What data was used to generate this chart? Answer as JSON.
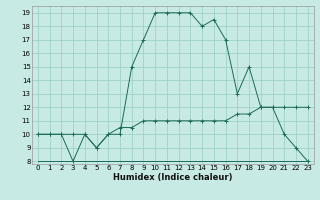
{
  "xlabel": "Humidex (Indice chaleur)",
  "xlim": [
    -0.5,
    23.5
  ],
  "ylim": [
    7.8,
    19.5
  ],
  "xticks": [
    0,
    1,
    2,
    3,
    4,
    5,
    6,
    7,
    8,
    9,
    10,
    11,
    12,
    13,
    14,
    15,
    16,
    17,
    18,
    19,
    20,
    21,
    22,
    23
  ],
  "yticks": [
    8,
    9,
    10,
    11,
    12,
    13,
    14,
    15,
    16,
    17,
    18,
    19
  ],
  "bg_color": "#c8eae4",
  "grid_color": "#a0d0cc",
  "line_color": "#1a6b5a",
  "line_main_x": [
    0,
    1,
    2,
    3,
    4,
    5,
    6,
    7,
    8,
    9,
    10,
    11,
    12,
    13,
    14,
    15,
    16,
    17,
    18,
    19,
    20,
    21,
    22,
    23
  ],
  "line_main_y": [
    10,
    10,
    10,
    8,
    10,
    9,
    10,
    10,
    15,
    17,
    19,
    19,
    19,
    19,
    18,
    18.5,
    17,
    13,
    15,
    12,
    12,
    10,
    9,
    8
  ],
  "line_flat_x": [
    0,
    1,
    2,
    3,
    4,
    5,
    6,
    7,
    8,
    9,
    10,
    11,
    12,
    13,
    14,
    15,
    16,
    17,
    18,
    19,
    20,
    21,
    22,
    23
  ],
  "line_flat_y": [
    8,
    8,
    8,
    8,
    8,
    8,
    8,
    8,
    8,
    8,
    8,
    8,
    8,
    8,
    8,
    8,
    8,
    8,
    8,
    8,
    8,
    8,
    8,
    8
  ],
  "line_avg_x": [
    0,
    1,
    2,
    3,
    4,
    5,
    6,
    7,
    8,
    9,
    10,
    11,
    12,
    13,
    14,
    15,
    16,
    17,
    18,
    19,
    20,
    21,
    22,
    23
  ],
  "line_avg_y": [
    10,
    10,
    10,
    10,
    10,
    9,
    10,
    10.5,
    10.5,
    11,
    11,
    11,
    11,
    11,
    11,
    11,
    11,
    11.5,
    11.5,
    12,
    12,
    12,
    12,
    12
  ]
}
